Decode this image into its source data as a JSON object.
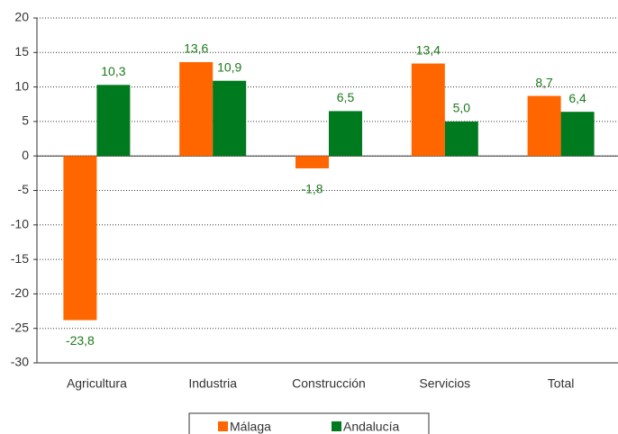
{
  "chart_data": {
    "type": "bar",
    "categories": [
      "Agricultura",
      "Industria",
      "Construcción",
      "Servicios",
      "Total"
    ],
    "series": [
      {
        "name": "Málaga",
        "color": "#ff6600",
        "values": [
          -23.8,
          13.6,
          -1.8,
          13.4,
          8.7
        ],
        "value_labels": [
          "-23,8",
          "13,6",
          "-1,8",
          "13,4",
          "8,7"
        ]
      },
      {
        "name": "Andalucía",
        "color": "#007a1e",
        "values": [
          10.3,
          10.9,
          6.5,
          5.0,
          6.4
        ],
        "value_labels": [
          "10,3",
          "10,9",
          "6,5",
          "5,0",
          "6,4"
        ]
      }
    ],
    "ylim": [
      -30,
      20
    ],
    "yticks": [
      -30,
      -25,
      -20,
      -15,
      -10,
      -5,
      0,
      5,
      10,
      15,
      20
    ],
    "grid": true,
    "legend": "bottom"
  }
}
